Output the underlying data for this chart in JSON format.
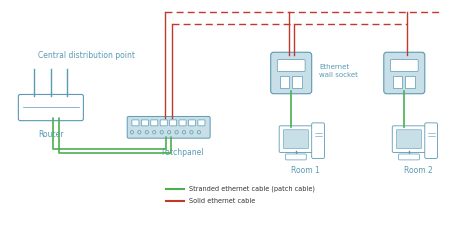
{
  "bg_color": "#ffffff",
  "line_color_green": "#4caf50",
  "line_color_red": "#c0392b",
  "device_color": "#c8dfe8",
  "device_edge": "#5a9ab5",
  "legend_green_label": "Stranded ethernet cable (patch cable)",
  "legend_red_label": "Solid ethernet cable",
  "label_color": "#5a9ab5",
  "label_fontsize": 5.5,
  "central_label": "Central distribution point",
  "router_label": "Router",
  "patchpanel_label": "Patchpanel",
  "room1_label": "Room 1",
  "room2_label": "Room 2",
  "wall_socket_label": "Ethernet\nwall socket",
  "xlim": [
    0,
    10
  ],
  "ylim": [
    0,
    4.5
  ]
}
